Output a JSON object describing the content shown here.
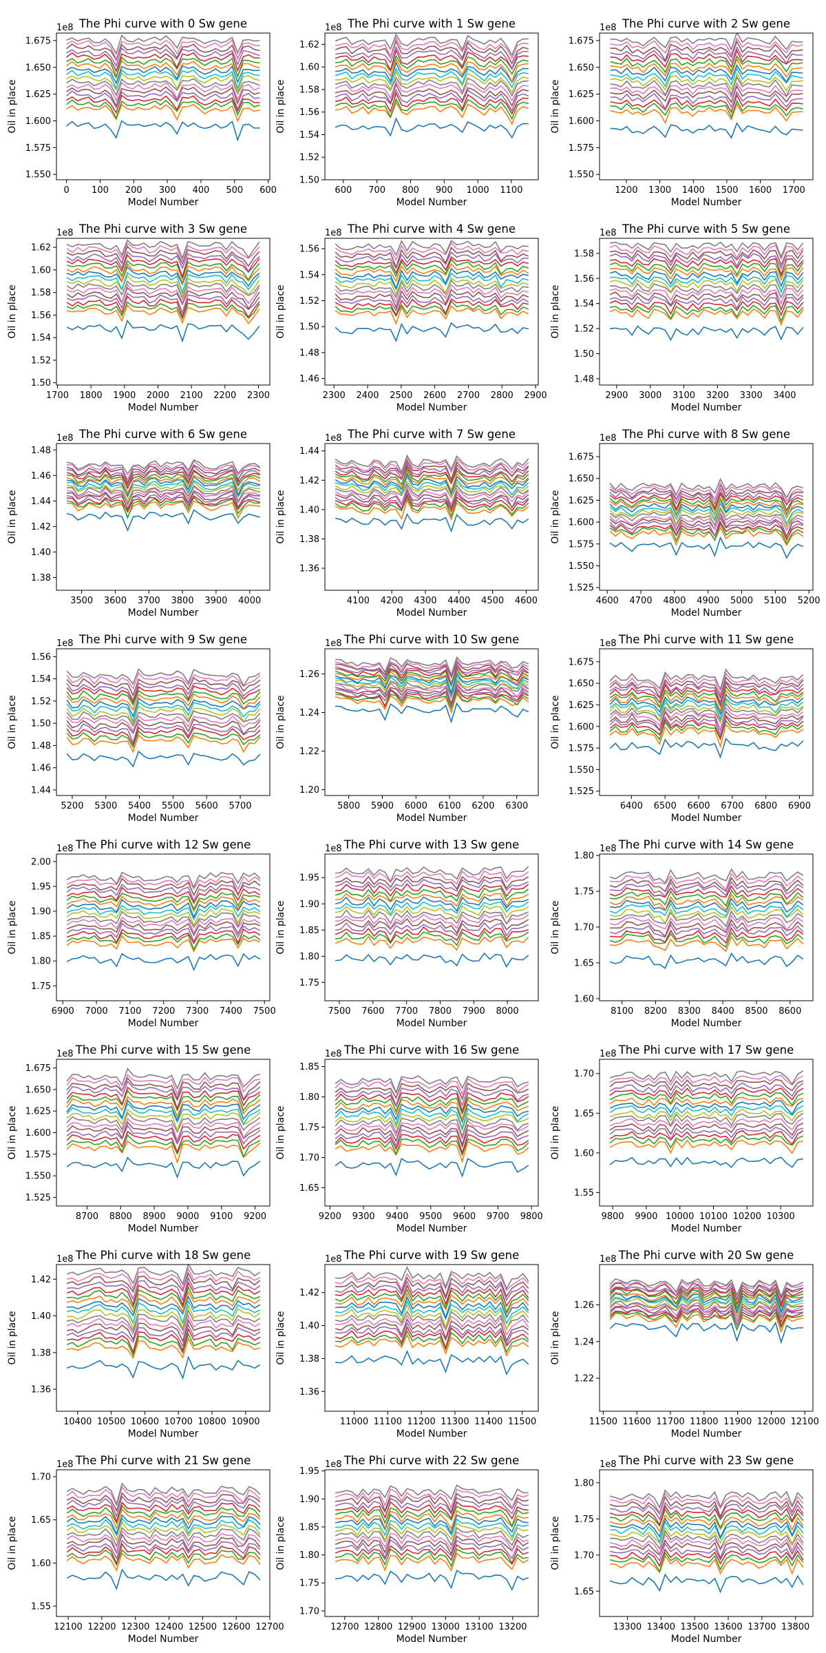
{
  "figure": {
    "xlabel": "Model Number",
    "ylabel": "Oil in place",
    "scale_label": "1e8",
    "title_template": "The Phi curve with {n} Sw gene",
    "grid": false,
    "legend": "none"
  },
  "series_colors": [
    "#1f77b4",
    "#ff7f0e",
    "#2ca02c",
    "#d62728",
    "#9467bd",
    "#8c564b",
    "#e377c2",
    "#7f7f7f",
    "#bcbd22",
    "#17becf"
  ],
  "chart_data": [
    {
      "type": "line",
      "gene": 0,
      "title": "The Phi curve with 0 Sw gene",
      "xlabel": "Model Number",
      "ylabel": "Oil in place",
      "x_start": 0,
      "x_end": 575,
      "xlim": [
        -30,
        605
      ],
      "ylim": [
        1.545,
        1.682
      ],
      "y_scale": "1e8",
      "xticks": [
        0,
        100,
        200,
        300,
        400,
        500,
        600
      ],
      "yticks": [
        1.55,
        1.575,
        1.6,
        1.625,
        1.65,
        1.675
      ],
      "ytick_labels": [
        "1.550",
        "1.575",
        "1.600",
        "1.625",
        "1.650",
        "1.675"
      ],
      "top_value": 1.675,
      "bottom_value": 1.595,
      "series_count": 18
    },
    {
      "type": "line",
      "gene": 1,
      "title": "The Phi curve with 1 Sw gene",
      "xlabel": "Model Number",
      "ylabel": "Oil in place",
      "x_start": 576,
      "x_end": 1151,
      "xlim": [
        545,
        1180
      ],
      "ylim": [
        1.5,
        1.63
      ],
      "y_scale": "1e8",
      "xticks": [
        600,
        700,
        800,
        900,
        1000,
        1100
      ],
      "yticks": [
        1.5,
        1.52,
        1.54,
        1.56,
        1.58,
        1.6,
        1.62
      ],
      "ytick_labels": [
        "1.50",
        "1.52",
        "1.54",
        "1.56",
        "1.58",
        "1.60",
        "1.62"
      ],
      "top_value": 1.622,
      "bottom_value": 1.546,
      "series_count": 18
    },
    {
      "type": "line",
      "gene": 2,
      "title": "The Phi curve with 2 Sw gene",
      "xlabel": "Model Number",
      "ylabel": "Oil in place",
      "x_start": 1152,
      "x_end": 1727,
      "xlim": [
        1120,
        1757
      ],
      "ylim": [
        1.545,
        1.682
      ],
      "y_scale": "1e8",
      "xticks": [
        1200,
        1300,
        1400,
        1500,
        1600,
        1700
      ],
      "yticks": [
        1.55,
        1.575,
        1.6,
        1.625,
        1.65,
        1.675
      ],
      "ytick_labels": [
        "1.550",
        "1.575",
        "1.600",
        "1.625",
        "1.650",
        "1.675"
      ],
      "top_value": 1.675,
      "bottom_value": 1.592,
      "series_count": 18
    },
    {
      "type": "line",
      "gene": 3,
      "title": "The Phi curve with 3 Sw gene",
      "xlabel": "Model Number",
      "ylabel": "Oil in place",
      "x_start": 1728,
      "x_end": 2303,
      "xlim": [
        1697,
        1333
      ],
      "ylim": [
        1.498,
        1.628
      ],
      "y_scale": "1e8",
      "xticks": [
        1700,
        1800,
        1900,
        2000,
        2100,
        2200,
        2300
      ],
      "yticks": [
        1.5,
        1.52,
        1.54,
        1.56,
        1.58,
        1.6,
        1.62
      ],
      "ytick_labels": [
        "1.50",
        "1.52",
        "1.54",
        "1.56",
        "1.58",
        "1.60",
        "1.62"
      ],
      "top_value": 1.621,
      "bottom_value": 1.548,
      "series_count": 18
    },
    {
      "type": "line",
      "gene": 4,
      "title": "The Phi curve with 4 Sw gene",
      "xlabel": "Model Number",
      "ylabel": "Oil in place",
      "x_start": 2304,
      "x_end": 2879,
      "xlim": [
        2273,
        2908
      ],
      "ylim": [
        1.455,
        1.568
      ],
      "y_scale": "1e8",
      "xticks": [
        2300,
        2400,
        2500,
        2600,
        2700,
        2800,
        2900
      ],
      "yticks": [
        1.46,
        1.48,
        1.5,
        1.52,
        1.54,
        1.56
      ],
      "ytick_labels": [
        "1.46",
        "1.48",
        "1.50",
        "1.52",
        "1.54",
        "1.56"
      ],
      "top_value": 1.562,
      "bottom_value": 1.498,
      "series_count": 18
    },
    {
      "type": "line",
      "gene": 5,
      "title": "The Phi curve with 5 Sw gene",
      "xlabel": "Model Number",
      "ylabel": "Oil in place",
      "x_start": 2880,
      "x_end": 3455,
      "xlim": [
        2849,
        3484
      ],
      "ylim": [
        1.475,
        1.592
      ],
      "y_scale": "1e8",
      "xticks": [
        2900,
        3000,
        3100,
        3200,
        3300,
        3400
      ],
      "yticks": [
        1.48,
        1.5,
        1.52,
        1.54,
        1.56,
        1.58
      ],
      "ytick_labels": [
        "1.48",
        "1.50",
        "1.52",
        "1.54",
        "1.56",
        "1.58"
      ],
      "top_value": 1.586,
      "bottom_value": 1.518,
      "series_count": 18
    },
    {
      "type": "line",
      "gene": 6,
      "title": "The Phi curve with 6 Sw gene",
      "xlabel": "Model Number",
      "ylabel": "Oil in place",
      "x_start": 3456,
      "x_end": 4031,
      "xlim": [
        3425,
        4060
      ],
      "ylim": [
        1.37,
        1.485
      ],
      "y_scale": "1e8",
      "xticks": [
        3500,
        3600,
        3700,
        3800,
        3900,
        4000
      ],
      "yticks": [
        1.38,
        1.4,
        1.42,
        1.44,
        1.46,
        1.48
      ],
      "ytick_labels": [
        "1.38",
        "1.40",
        "1.42",
        "1.44",
        "1.46",
        "1.48"
      ],
      "top_value": 1.468,
      "bottom_value": 1.428,
      "series_count": 18
    },
    {
      "type": "line",
      "gene": 7,
      "title": "The Phi curve with 7 Sw gene",
      "xlabel": "Model Number",
      "ylabel": "Oil in place",
      "x_start": 4032,
      "x_end": 4607,
      "xlim": [
        4001,
        4636
      ],
      "ylim": [
        1.345,
        1.445
      ],
      "y_scale": "1e8",
      "xticks": [
        4100,
        4200,
        4300,
        4400,
        4500,
        4600
      ],
      "yticks": [
        1.36,
        1.38,
        1.4,
        1.42,
        1.44
      ],
      "ytick_labels": [
        "1.36",
        "1.38",
        "1.40",
        "1.42",
        "1.44"
      ],
      "top_value": 1.432,
      "bottom_value": 1.392,
      "series_count": 18
    },
    {
      "type": "line",
      "gene": 8,
      "title": "The Phi curve with 8 Sw gene",
      "xlabel": "Model Number",
      "ylabel": "Oil in place",
      "x_start": 4608,
      "x_end": 5183,
      "xlim": [
        4577,
        5212
      ],
      "ylim": [
        1.522,
        1.69
      ],
      "y_scale": "1e8",
      "xticks": [
        4600,
        4700,
        4800,
        4900,
        5000,
        5100,
        5200
      ],
      "yticks": [
        1.525,
        1.55,
        1.575,
        1.6,
        1.625,
        1.65,
        1.675
      ],
      "ytick_labels": [
        "1.525",
        "1.550",
        "1.575",
        "1.600",
        "1.625",
        "1.650",
        "1.675"
      ],
      "top_value": 1.64,
      "bottom_value": 1.572,
      "series_count": 18
    },
    {
      "type": "line",
      "gene": 9,
      "title": "The Phi curve with 9 Sw gene",
      "xlabel": "Model Number",
      "ylabel": "Oil in place",
      "x_start": 5184,
      "x_end": 5759,
      "xlim": [
        5153,
        5788
      ],
      "ylim": [
        1.435,
        1.567
      ],
      "y_scale": "1e8",
      "xticks": [
        5200,
        5300,
        5400,
        5500,
        5600,
        5700
      ],
      "yticks": [
        1.44,
        1.46,
        1.48,
        1.5,
        1.52,
        1.54,
        1.56
      ],
      "ytick_labels": [
        "1.44",
        "1.46",
        "1.48",
        "1.50",
        "1.52",
        "1.54",
        "1.56"
      ],
      "top_value": 1.543,
      "bottom_value": 1.469,
      "series_count": 18
    },
    {
      "type": "line",
      "gene": 10,
      "title": "The Phi curve with 10 Sw gene",
      "xlabel": "Model Number",
      "ylabel": "Oil in place",
      "x_start": 5760,
      "x_end": 6335,
      "xlim": [
        5729,
        6364
      ],
      "ylim": [
        1.197,
        1.273
      ],
      "y_scale": "1e8",
      "xticks": [
        5800,
        5900,
        6000,
        6100,
        6200,
        6300
      ],
      "yticks": [
        1.2,
        1.22,
        1.24,
        1.26
      ],
      "ytick_labels": [
        "1.20",
        "1.22",
        "1.24",
        "1.26"
      ],
      "top_value": 1.265,
      "bottom_value": 1.241,
      "series_count": 18
    },
    {
      "type": "line",
      "gene": 11,
      "title": "The Phi curve with 11 Sw gene",
      "xlabel": "Model Number",
      "ylabel": "Oil in place",
      "x_start": 6336,
      "x_end": 6911,
      "xlim": [
        6305,
        6940
      ],
      "ylim": [
        1.52,
        1.69
      ],
      "y_scale": "1e8",
      "xticks": [
        6400,
        6500,
        6600,
        6700,
        6800,
        6900
      ],
      "yticks": [
        1.525,
        1.55,
        1.575,
        1.6,
        1.625,
        1.65,
        1.675
      ],
      "ytick_labels": [
        "1.525",
        "1.550",
        "1.575",
        "1.600",
        "1.625",
        "1.650",
        "1.675"
      ],
      "top_value": 1.656,
      "bottom_value": 1.578,
      "series_count": 18
    },
    {
      "type": "line",
      "gene": 12,
      "title": "The Phi curve with 12 Sw gene",
      "xlabel": "Model Number",
      "ylabel": "Oil in place",
      "x_start": 6912,
      "x_end": 7487,
      "xlim": [
        6881,
        7516
      ],
      "ylim": [
        1.72,
        2.015
      ],
      "y_scale": "1e8",
      "xticks": [
        6900,
        7000,
        7100,
        7200,
        7300,
        7400,
        7500
      ],
      "yticks": [
        1.75,
        1.8,
        1.85,
        1.9,
        1.95,
        2.0
      ],
      "ytick_labels": [
        "1.75",
        "1.80",
        "1.85",
        "1.90",
        "1.95",
        "2.00"
      ],
      "top_value": 1.968,
      "bottom_value": 1.804,
      "series_count": 18
    },
    {
      "type": "line",
      "gene": 13,
      "title": "The Phi curve with 13 Sw gene",
      "xlabel": "Model Number",
      "ylabel": "Oil in place",
      "x_start": 7488,
      "x_end": 8063,
      "xlim": [
        7457,
        8092
      ],
      "ylim": [
        1.715,
        1.995
      ],
      "y_scale": "1e8",
      "xticks": [
        7500,
        7600,
        7700,
        7800,
        7900,
        8000
      ],
      "yticks": [
        1.75,
        1.8,
        1.85,
        1.9,
        1.95
      ],
      "ytick_labels": [
        "1.75",
        "1.80",
        "1.85",
        "1.90",
        "1.95"
      ],
      "top_value": 1.962,
      "bottom_value": 1.796,
      "series_count": 18
    },
    {
      "type": "line",
      "gene": 14,
      "title": "The Phi curve with 14 Sw gene",
      "xlabel": "Model Number",
      "ylabel": "Oil in place",
      "x_start": 8064,
      "x_end": 8639,
      "xlim": [
        8033,
        8668
      ],
      "ylim": [
        1.597,
        1.802
      ],
      "y_scale": "1e8",
      "xticks": [
        8100,
        8200,
        8300,
        8400,
        8500,
        8600
      ],
      "yticks": [
        1.6,
        1.65,
        1.7,
        1.75,
        1.8
      ],
      "ytick_labels": [
        "1.60",
        "1.65",
        "1.70",
        "1.75",
        "1.80"
      ],
      "top_value": 1.772,
      "bottom_value": 1.654,
      "series_count": 18
    },
    {
      "type": "line",
      "gene": 15,
      "title": "The Phi curve with 15 Sw gene",
      "xlabel": "Model Number",
      "ylabel": "Oil in place",
      "x_start": 8640,
      "x_end": 9215,
      "xlim": [
        8609,
        9244
      ],
      "ylim": [
        1.515,
        1.685
      ],
      "y_scale": "1e8",
      "xticks": [
        8700,
        8800,
        8900,
        9000,
        9100,
        9200
      ],
      "yticks": [
        1.525,
        1.55,
        1.575,
        1.6,
        1.625,
        1.65,
        1.675
      ],
      "ytick_labels": [
        "1.525",
        "1.550",
        "1.575",
        "1.600",
        "1.625",
        "1.650",
        "1.675"
      ],
      "top_value": 1.664,
      "bottom_value": 1.562,
      "series_count": 18
    },
    {
      "type": "line",
      "gene": 16,
      "title": "The Phi curve with 16 Sw gene",
      "xlabel": "Model Number",
      "ylabel": "Oil in place",
      "x_start": 9216,
      "x_end": 9791,
      "xlim": [
        9185,
        9820
      ],
      "ylim": [
        1.62,
        1.862
      ],
      "y_scale": "1e8",
      "xticks": [
        9200,
        9300,
        9400,
        9500,
        9600,
        9700,
        9800
      ],
      "yticks": [
        1.65,
        1.7,
        1.75,
        1.8,
        1.85
      ],
      "ytick_labels": [
        "1.65",
        "1.70",
        "1.75",
        "1.80",
        "1.85"
      ],
      "top_value": 1.827,
      "bottom_value": 1.688,
      "series_count": 18
    },
    {
      "type": "line",
      "gene": 17,
      "title": "The Phi curve with 17 Sw gene",
      "xlabel": "Model Number",
      "ylabel": "Oil in place",
      "x_start": 9792,
      "x_end": 10367,
      "xlim": [
        9761,
        10396
      ],
      "ylim": [
        1.533,
        1.718
      ],
      "y_scale": "1e8",
      "xticks": [
        9800,
        9900,
        10000,
        10100,
        10200,
        10300
      ],
      "yticks": [
        1.55,
        1.6,
        1.65,
        1.7
      ],
      "ytick_labels": [
        "1.55",
        "1.60",
        "1.65",
        "1.70"
      ],
      "top_value": 1.698,
      "bottom_value": 1.589,
      "series_count": 18
    },
    {
      "type": "line",
      "gene": 18,
      "title": "The Phi curve with 18 Sw gene",
      "xlabel": "Model Number",
      "ylabel": "Oil in place",
      "x_start": 10368,
      "x_end": 10943,
      "xlim": [
        10337,
        10972
      ],
      "ylim": [
        1.348,
        1.428
      ],
      "y_scale": "1e8",
      "xticks": [
        10400,
        10500,
        10600,
        10700,
        10800,
        10900
      ],
      "yticks": [
        1.36,
        1.38,
        1.4,
        1.42
      ],
      "ytick_labels": [
        "1.36",
        "1.38",
        "1.40",
        "1.42"
      ],
      "top_value": 1.424,
      "bottom_value": 1.373,
      "series_count": 18
    },
    {
      "type": "line",
      "gene": 19,
      "title": "The Phi curve with 19 Sw gene",
      "xlabel": "Model Number",
      "ylabel": "Oil in place",
      "x_start": 10944,
      "x_end": 11519,
      "xlim": [
        10913,
        11548
      ],
      "ylim": [
        1.348,
        1.437
      ],
      "y_scale": "1e8",
      "xticks": [
        11000,
        11100,
        11200,
        11300,
        11400,
        11500
      ],
      "yticks": [
        1.36,
        1.38,
        1.4,
        1.42
      ],
      "ytick_labels": [
        "1.36",
        "1.38",
        "1.40",
        "1.42"
      ],
      "top_value": 1.43,
      "bottom_value": 1.379,
      "series_count": 18
    },
    {
      "type": "line",
      "gene": 20,
      "title": "The Phi curve with 20 Sw gene",
      "xlabel": "Model Number",
      "ylabel": "Oil in place",
      "x_start": 11520,
      "x_end": 12095,
      "xlim": [
        11489,
        12124
      ],
      "ylim": [
        1.202,
        1.282
      ],
      "y_scale": "1e8",
      "xticks": [
        11500,
        11600,
        11700,
        11800,
        11900,
        12000,
        12100
      ],
      "yticks": [
        1.22,
        1.24,
        1.26
      ],
      "ytick_labels": [
        "1.22",
        "1.24",
        "1.26"
      ],
      "top_value": 1.272,
      "bottom_value": 1.248,
      "series_count": 18
    },
    {
      "type": "line",
      "gene": 21,
      "title": "The Phi curve with 21 Sw gene",
      "xlabel": "Model Number",
      "ylabel": "Oil in place",
      "x_start": 12096,
      "x_end": 12671,
      "xlim": [
        12065,
        12700
      ],
      "ylim": [
        1.538,
        1.708
      ],
      "y_scale": "1e8",
      "xticks": [
        12100,
        12200,
        12300,
        12400,
        12500,
        12600,
        12700
      ],
      "yticks": [
        1.55,
        1.6,
        1.65,
        1.7
      ],
      "ytick_labels": [
        "1.55",
        "1.60",
        "1.65",
        "1.70"
      ],
      "top_value": 1.684,
      "bottom_value": 1.584,
      "series_count": 18
    },
    {
      "type": "line",
      "gene": 22,
      "title": "The Phi curve with 22 Sw gene",
      "xlabel": "Model Number",
      "ylabel": "Oil in place",
      "x_start": 12672,
      "x_end": 13247,
      "xlim": [
        12641,
        13276
      ],
      "ylim": [
        1.69,
        1.952
      ],
      "y_scale": "1e8",
      "xticks": [
        12700,
        12800,
        12900,
        13000,
        13100,
        13200
      ],
      "yticks": [
        1.7,
        1.75,
        1.8,
        1.85,
        1.9,
        1.95
      ],
      "ytick_labels": [
        "1.70",
        "1.75",
        "1.80",
        "1.85",
        "1.90",
        "1.95"
      ],
      "top_value": 1.912,
      "bottom_value": 1.759,
      "series_count": 18
    },
    {
      "type": "line",
      "gene": 23,
      "title": "The Phi curve with 23 Sw gene",
      "xlabel": "Model Number",
      "ylabel": "Oil in place",
      "x_start": 13248,
      "x_end": 13823,
      "xlim": [
        13217,
        13852
      ],
      "ylim": [
        1.615,
        1.818
      ],
      "y_scale": "1e8",
      "xticks": [
        13300,
        13400,
        13500,
        13600,
        13700,
        13800
      ],
      "yticks": [
        1.65,
        1.7,
        1.75,
        1.8
      ],
      "ytick_labels": [
        "1.65",
        "1.70",
        "1.75",
        "1.80"
      ],
      "top_value": 1.782,
      "bottom_value": 1.665,
      "series_count": 18
    }
  ]
}
